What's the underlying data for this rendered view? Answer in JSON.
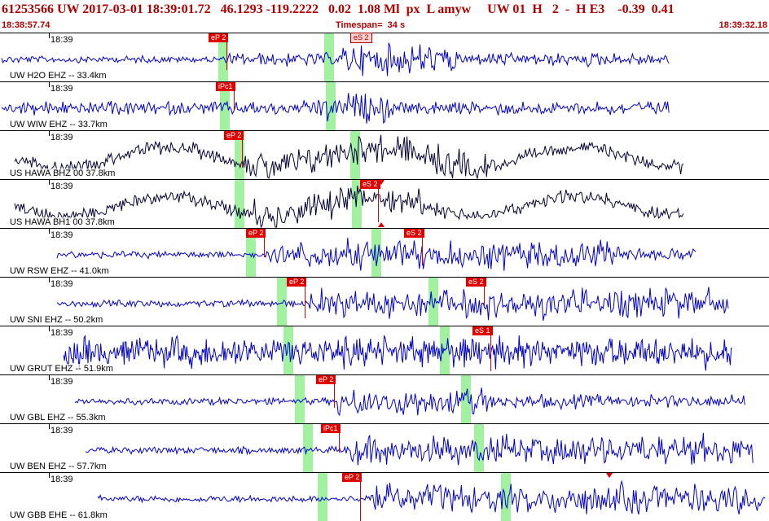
{
  "header": {
    "title": "61253566 UW 2017-03-01 18:39:01.72   46.1293 -119.2222   0.02  1.08 Ml  px  L amyw     UW 01  H   2  -  H E3    -0.39  0.41",
    "start_time": "18:38:57.74",
    "timespan": "Timespan=  34 s",
    "end_time": "18:39:32.18",
    "top_pick": "eS 2"
  },
  "panels": [
    {
      "time": "18:39",
      "station": "UW H2O EHZ -- 33.4km",
      "color": "#0000cc",
      "picks": [
        {
          "label": "eP 2"
        }
      ]
    },
    {
      "time": "18:39",
      "station": "UW WIW EHZ -- 33.7km",
      "color": "#0000cc",
      "picks": [
        {
          "label": "iPc1"
        }
      ]
    },
    {
      "time": "18:39",
      "station": "US HAWA BHZ 00 37.8km",
      "color": "#000033",
      "picks": [
        {
          "label": "eP 2"
        }
      ]
    },
    {
      "time": "18:39",
      "station": "US HAWA BH1 00 37.8km",
      "color": "#000033",
      "picks": [
        {
          "label": "eS 2"
        }
      ]
    },
    {
      "time": "18:39",
      "station": "UW RSW EHZ -- 41.0km",
      "color": "#0000cc",
      "picks": [
        {
          "label": "eP 2"
        },
        {
          "label": "eS 2"
        }
      ]
    },
    {
      "time": "18:39",
      "station": "UW SNI EHZ -- 50.2km",
      "color": "#0000cc",
      "picks": [
        {
          "label": "eP 2"
        },
        {
          "label": "eS 2"
        }
      ]
    },
    {
      "time": "18:39",
      "station": "UW GRUT EHZ -- 51.9km",
      "color": "#0000cc",
      "picks": [
        {
          "label": "eS 1"
        }
      ]
    },
    {
      "time": "18:39",
      "station": "UW GBL EHZ -- 55.3km",
      "color": "#0000cc",
      "picks": [
        {
          "label": "eP 2"
        }
      ]
    },
    {
      "time": "18:39",
      "station": "UW BEN EHZ -- 57.7km",
      "color": "#0000cc",
      "picks": [
        {
          "label": "iPc1"
        }
      ]
    },
    {
      "time": "18:39",
      "station": "UW GBB EHE -- 61.8km",
      "color": "#0000cc",
      "picks": [
        {
          "label": "eP 2"
        }
      ]
    }
  ]
}
